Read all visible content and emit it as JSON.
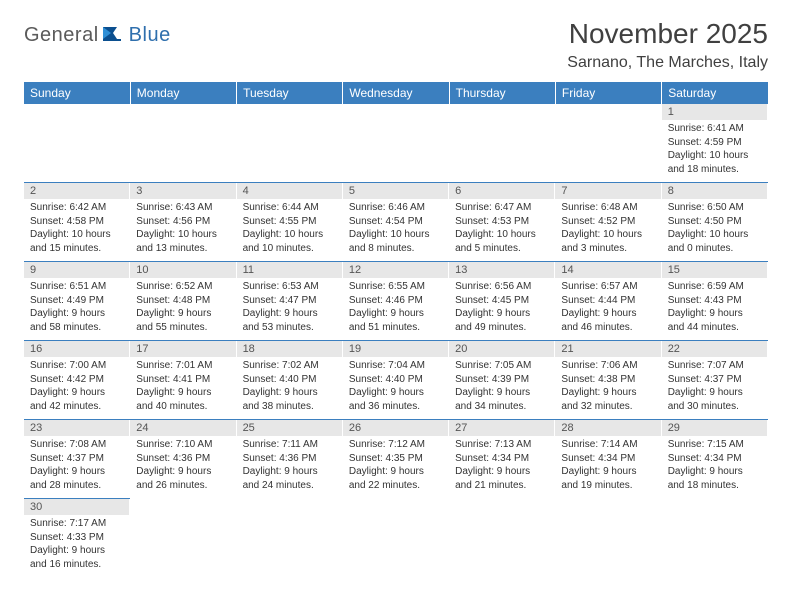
{
  "logo": {
    "general": "General",
    "blue": "Blue"
  },
  "title": "November 2025",
  "location": "Sarnano, The Marches, Italy",
  "colors": {
    "header_bg": "#3b7fbf",
    "header_text": "#ffffff",
    "daynum_bg": "#e7e7e7",
    "rule": "#3b7fbf"
  },
  "day_headers": [
    "Sunday",
    "Monday",
    "Tuesday",
    "Wednesday",
    "Thursday",
    "Friday",
    "Saturday"
  ],
  "weeks": [
    [
      null,
      null,
      null,
      null,
      null,
      null,
      {
        "n": "1",
        "sr": "Sunrise: 6:41 AM",
        "ss": "Sunset: 4:59 PM",
        "dl": "Daylight: 10 hours and 18 minutes."
      }
    ],
    [
      {
        "n": "2",
        "sr": "Sunrise: 6:42 AM",
        "ss": "Sunset: 4:58 PM",
        "dl": "Daylight: 10 hours and 15 minutes."
      },
      {
        "n": "3",
        "sr": "Sunrise: 6:43 AM",
        "ss": "Sunset: 4:56 PM",
        "dl": "Daylight: 10 hours and 13 minutes."
      },
      {
        "n": "4",
        "sr": "Sunrise: 6:44 AM",
        "ss": "Sunset: 4:55 PM",
        "dl": "Daylight: 10 hours and 10 minutes."
      },
      {
        "n": "5",
        "sr": "Sunrise: 6:46 AM",
        "ss": "Sunset: 4:54 PM",
        "dl": "Daylight: 10 hours and 8 minutes."
      },
      {
        "n": "6",
        "sr": "Sunrise: 6:47 AM",
        "ss": "Sunset: 4:53 PM",
        "dl": "Daylight: 10 hours and 5 minutes."
      },
      {
        "n": "7",
        "sr": "Sunrise: 6:48 AM",
        "ss": "Sunset: 4:52 PM",
        "dl": "Daylight: 10 hours and 3 minutes."
      },
      {
        "n": "8",
        "sr": "Sunrise: 6:50 AM",
        "ss": "Sunset: 4:50 PM",
        "dl": "Daylight: 10 hours and 0 minutes."
      }
    ],
    [
      {
        "n": "9",
        "sr": "Sunrise: 6:51 AM",
        "ss": "Sunset: 4:49 PM",
        "dl": "Daylight: 9 hours and 58 minutes."
      },
      {
        "n": "10",
        "sr": "Sunrise: 6:52 AM",
        "ss": "Sunset: 4:48 PM",
        "dl": "Daylight: 9 hours and 55 minutes."
      },
      {
        "n": "11",
        "sr": "Sunrise: 6:53 AM",
        "ss": "Sunset: 4:47 PM",
        "dl": "Daylight: 9 hours and 53 minutes."
      },
      {
        "n": "12",
        "sr": "Sunrise: 6:55 AM",
        "ss": "Sunset: 4:46 PM",
        "dl": "Daylight: 9 hours and 51 minutes."
      },
      {
        "n": "13",
        "sr": "Sunrise: 6:56 AM",
        "ss": "Sunset: 4:45 PM",
        "dl": "Daylight: 9 hours and 49 minutes."
      },
      {
        "n": "14",
        "sr": "Sunrise: 6:57 AM",
        "ss": "Sunset: 4:44 PM",
        "dl": "Daylight: 9 hours and 46 minutes."
      },
      {
        "n": "15",
        "sr": "Sunrise: 6:59 AM",
        "ss": "Sunset: 4:43 PM",
        "dl": "Daylight: 9 hours and 44 minutes."
      }
    ],
    [
      {
        "n": "16",
        "sr": "Sunrise: 7:00 AM",
        "ss": "Sunset: 4:42 PM",
        "dl": "Daylight: 9 hours and 42 minutes."
      },
      {
        "n": "17",
        "sr": "Sunrise: 7:01 AM",
        "ss": "Sunset: 4:41 PM",
        "dl": "Daylight: 9 hours and 40 minutes."
      },
      {
        "n": "18",
        "sr": "Sunrise: 7:02 AM",
        "ss": "Sunset: 4:40 PM",
        "dl": "Daylight: 9 hours and 38 minutes."
      },
      {
        "n": "19",
        "sr": "Sunrise: 7:04 AM",
        "ss": "Sunset: 4:40 PM",
        "dl": "Daylight: 9 hours and 36 minutes."
      },
      {
        "n": "20",
        "sr": "Sunrise: 7:05 AM",
        "ss": "Sunset: 4:39 PM",
        "dl": "Daylight: 9 hours and 34 minutes."
      },
      {
        "n": "21",
        "sr": "Sunrise: 7:06 AM",
        "ss": "Sunset: 4:38 PM",
        "dl": "Daylight: 9 hours and 32 minutes."
      },
      {
        "n": "22",
        "sr": "Sunrise: 7:07 AM",
        "ss": "Sunset: 4:37 PM",
        "dl": "Daylight: 9 hours and 30 minutes."
      }
    ],
    [
      {
        "n": "23",
        "sr": "Sunrise: 7:08 AM",
        "ss": "Sunset: 4:37 PM",
        "dl": "Daylight: 9 hours and 28 minutes."
      },
      {
        "n": "24",
        "sr": "Sunrise: 7:10 AM",
        "ss": "Sunset: 4:36 PM",
        "dl": "Daylight: 9 hours and 26 minutes."
      },
      {
        "n": "25",
        "sr": "Sunrise: 7:11 AM",
        "ss": "Sunset: 4:36 PM",
        "dl": "Daylight: 9 hours and 24 minutes."
      },
      {
        "n": "26",
        "sr": "Sunrise: 7:12 AM",
        "ss": "Sunset: 4:35 PM",
        "dl": "Daylight: 9 hours and 22 minutes."
      },
      {
        "n": "27",
        "sr": "Sunrise: 7:13 AM",
        "ss": "Sunset: 4:34 PM",
        "dl": "Daylight: 9 hours and 21 minutes."
      },
      {
        "n": "28",
        "sr": "Sunrise: 7:14 AM",
        "ss": "Sunset: 4:34 PM",
        "dl": "Daylight: 9 hours and 19 minutes."
      },
      {
        "n": "29",
        "sr": "Sunrise: 7:15 AM",
        "ss": "Sunset: 4:34 PM",
        "dl": "Daylight: 9 hours and 18 minutes."
      }
    ],
    [
      {
        "n": "30",
        "sr": "Sunrise: 7:17 AM",
        "ss": "Sunset: 4:33 PM",
        "dl": "Daylight: 9 hours and 16 minutes."
      },
      null,
      null,
      null,
      null,
      null,
      null
    ]
  ]
}
